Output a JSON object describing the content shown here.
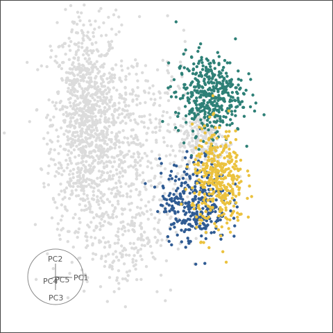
{
  "chart_data": {
    "type": "scatter",
    "title": "",
    "xlabel": "",
    "ylabel": "",
    "grid": false,
    "legend": "none",
    "projection_widget": {
      "axis_labels": [
        "PC1",
        "PC2",
        "PC3",
        "PC4",
        "PC5"
      ]
    },
    "series": [
      {
        "color": "#dcdcdc",
        "clusters": [
          {
            "cx": -2.2,
            "cy": 1.5,
            "sx": 0.45,
            "sy": 1.4,
            "n": 900
          },
          {
            "cx": -1.0,
            "cy": 1.0,
            "sx": 0.9,
            "sy": 1.3,
            "n": 500
          },
          {
            "cx": -1.2,
            "cy": -1.4,
            "sx": 0.7,
            "sy": 0.9,
            "n": 250
          },
          {
            "cx": 1.0,
            "cy": 1.0,
            "sx": 0.35,
            "sy": 0.45,
            "n": 200
          }
        ]
      },
      {
        "color": "#2e8077",
        "clusters": [
          {
            "cx": 1.15,
            "cy": 2.25,
            "sx": 0.45,
            "sy": 0.55,
            "n": 420
          }
        ]
      },
      {
        "color": "#2f5b93",
        "clusters": [
          {
            "cx": 0.75,
            "cy": -0.65,
            "sx": 0.45,
            "sy": 0.55,
            "n": 330
          }
        ]
      },
      {
        "color": "#ebc23f",
        "clusters": [
          {
            "cx": 1.4,
            "cy": -0.1,
            "sx": 0.35,
            "sy": 0.7,
            "n": 380
          }
        ]
      }
    ],
    "xlim": [
      -4.5,
      4.5
    ],
    "ylim": [
      -4.2,
      4.8
    ]
  }
}
